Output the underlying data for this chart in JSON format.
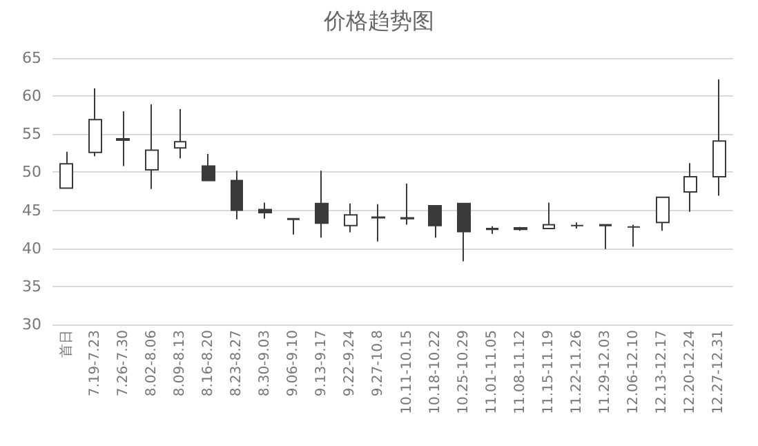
{
  "chart_data": {
    "type": "candlestick",
    "title": "价格趋势图",
    "categories": [
      "首日",
      "7.19-7.23",
      "7.26-7.30",
      "8.02-8.06",
      "8.09-8.13",
      "8.16-8.20",
      "8.23-8.27",
      "8.30-9.03",
      "9.06-9.10",
      "9.13-9.17",
      "9.22-9.24",
      "9.27-10.8",
      "10.11-10.15",
      "10.18-10.22",
      "10.25-10.29",
      "11.01-11.05",
      "11.08-11.12",
      "11.15-11.19",
      "11.22-11.26",
      "11.29-12.03",
      "12.06-12.10",
      "12.13-12.17",
      "12.20-12.24",
      "12.27-12.31"
    ],
    "ohlc": [
      [
        47.9,
        52.7,
        47.9,
        51.1
      ],
      [
        52.6,
        61.0,
        52.1,
        56.9
      ],
      [
        54.4,
        58.0,
        50.8,
        54.2
      ],
      [
        50.3,
        58.9,
        47.8,
        52.9
      ],
      [
        53.2,
        58.3,
        51.8,
        54.0
      ],
      [
        50.8,
        52.4,
        48.9,
        48.9
      ],
      [
        48.9,
        50.2,
        43.8,
        45.0
      ],
      [
        45.1,
        46.0,
        43.9,
        44.7
      ],
      [
        43.8,
        43.9,
        41.8,
        43.9
      ],
      [
        45.9,
        50.2,
        41.4,
        43.3
      ],
      [
        43.0,
        45.9,
        42.1,
        44.4
      ],
      [
        44.0,
        45.8,
        40.9,
        44.1
      ],
      [
        43.9,
        48.5,
        43.1,
        44.0
      ],
      [
        45.6,
        45.6,
        41.4,
        43.0
      ],
      [
        45.9,
        45.9,
        38.3,
        42.2
      ],
      [
        42.6,
        42.9,
        41.9,
        42.5
      ],
      [
        42.7,
        42.8,
        42.3,
        42.5
      ],
      [
        42.6,
        46.0,
        42.6,
        43.1
      ],
      [
        43.0,
        43.4,
        42.6,
        43.0
      ],
      [
        43.1,
        43.2,
        39.9,
        43.0
      ],
      [
        42.8,
        43.1,
        40.2,
        42.8
      ],
      [
        43.4,
        46.7,
        42.3,
        46.7
      ],
      [
        47.4,
        51.2,
        44.8,
        49.4
      ],
      [
        49.4,
        62.2,
        46.9,
        54.1
      ]
    ],
    "color": "#3a3a3a",
    "ylim": [
      30,
      65
    ],
    "yticks": [
      30,
      35,
      40,
      45,
      50,
      55,
      60,
      65
    ],
    "grid": "y"
  }
}
